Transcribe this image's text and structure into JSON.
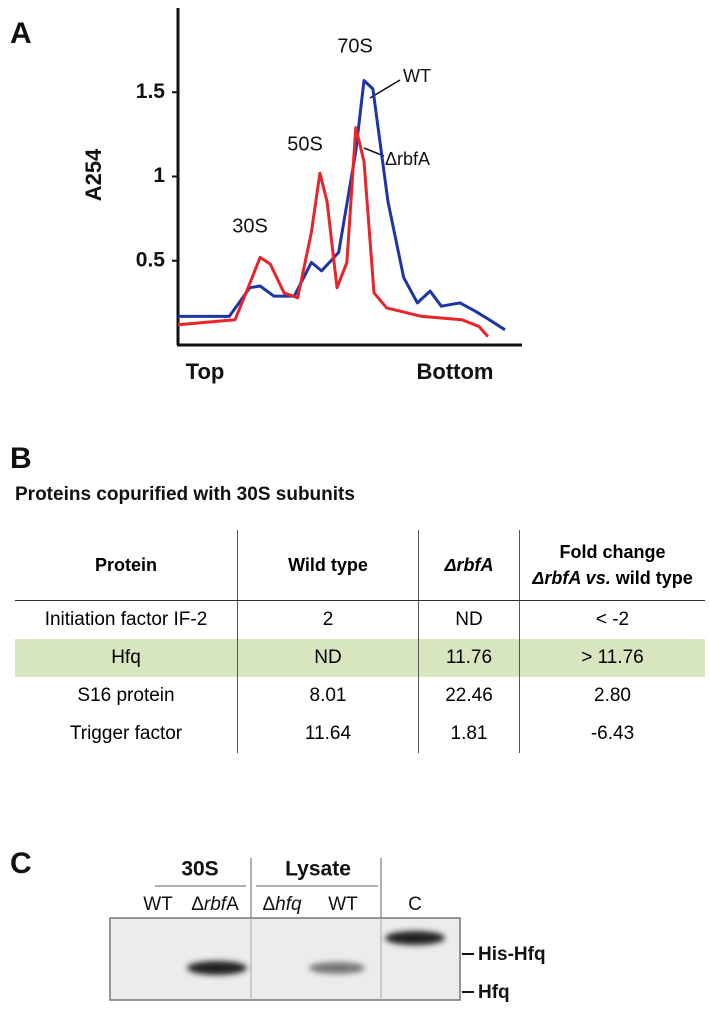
{
  "panel_labels": [
    "A",
    "B",
    "C"
  ],
  "chart_data": {
    "type": "line",
    "y_label": "A254",
    "x_labels": [
      "Top",
      "Bottom"
    ],
    "xlim": [
      0,
      100
    ],
    "ylim": [
      0,
      2
    ],
    "yticks": [
      0.5,
      1,
      1.5
    ],
    "annotations": [
      "30S",
      "50S",
      "70S"
    ],
    "series": [
      {
        "name": "WT",
        "color": "#1f35a3",
        "x": [
          0,
          15,
          21,
          24,
          28,
          34,
          39,
          42,
          47,
          52,
          54.4,
          57,
          61.4,
          66,
          70,
          73.7,
          77,
          82.5,
          87,
          91,
          95.6
        ],
        "values": [
          0.17,
          0.17,
          0.34,
          0.35,
          0.29,
          0.29,
          0.49,
          0.44,
          0.55,
          1.15,
          1.57,
          1.52,
          0.85,
          0.4,
          0.25,
          0.32,
          0.23,
          0.25,
          0.2,
          0.15,
          0.09
        ]
      },
      {
        "name": "ΔrbfA",
        "color": "#e8242b",
        "x": [
          0,
          16.7,
          20.5,
          24,
          27,
          31,
          35,
          39,
          41.5,
          43.6,
          46.5,
          49.4,
          52,
          54.4,
          57.3,
          61,
          71.3,
          83,
          88,
          90.6
        ],
        "values": [
          0.12,
          0.15,
          0.34,
          0.52,
          0.48,
          0.31,
          0.28,
          0.67,
          1.02,
          0.85,
          0.34,
          0.49,
          1.29,
          1.09,
          0.31,
          0.22,
          0.17,
          0.15,
          0.11,
          0.05
        ]
      }
    ]
  },
  "table": {
    "title": "Proteins copurified with 30S subunits",
    "header": [
      "Protein",
      "Wild type",
      "ΔrbfA",
      [
        "Fold change",
        "ΔrbfA vs.",
        "wild type"
      ]
    ],
    "rows": [
      [
        "Initiation factor IF-2",
        "2",
        "ND",
        "< -2"
      ],
      [
        "Hfq",
        "ND",
        "11.76",
        "> 11.76"
      ],
      [
        "S16 protein",
        "8.01",
        "22.46",
        "2.80"
      ],
      [
        "Trigger factor",
        "11.64",
        "1.81",
        "-6.43"
      ]
    ]
  },
  "blot": {
    "groups": [
      "30S",
      "Lysate"
    ],
    "lanes": [
      "WT",
      [
        "Δ",
        "rbf",
        "A"
      ],
      [
        "Δ",
        "hfq"
      ],
      "WT",
      "C"
    ],
    "band_labels": [
      "His-Hfq",
      "Hfq"
    ]
  }
}
